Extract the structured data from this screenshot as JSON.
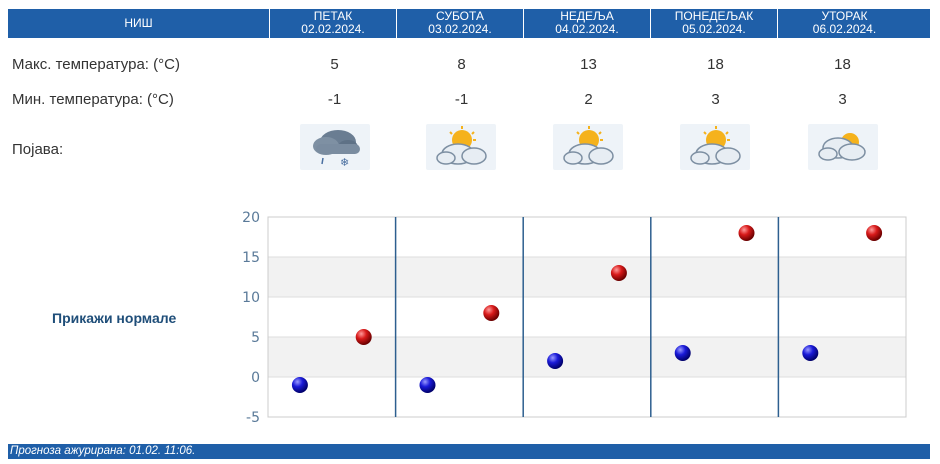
{
  "header": {
    "city": "НИШ",
    "days": [
      {
        "name": "ПЕТАК",
        "date": "02.02.2024."
      },
      {
        "name": "СУБОТА",
        "date": "03.02.2024."
      },
      {
        "name": "НЕДЕЉА",
        "date": "04.02.2024."
      },
      {
        "name": "ПОНЕДЕЉАК",
        "date": "05.02.2024."
      },
      {
        "name": "УТОРАК",
        "date": "06.02.2024."
      }
    ]
  },
  "rows": {
    "max_label": "Макс. температура: (°C)",
    "min_label": "Мин. температура: (°C)",
    "phenomenon_label": "Појава:",
    "max_values": [
      "5",
      "8",
      "13",
      "18",
      "18"
    ],
    "min_values": [
      "-1",
      "-1",
      "2",
      "3",
      "3"
    ],
    "icons": [
      "cloud-snow-icon",
      "sun-behind-cloud-icon",
      "sun-behind-cloud-icon",
      "sun-behind-cloud-icon",
      "partly-cloudy-icon"
    ]
  },
  "normals_label": "Прикажи нормале",
  "footer": "Прогноза ажурирана:  01.02. 11:06.",
  "chart_data": {
    "type": "scatter",
    "categories": [
      "ПЕТАК",
      "СУБОТА",
      "НЕДЕЉА",
      "ПОНЕДЕЉАК",
      "УТОРАК"
    ],
    "ylim": [
      -5,
      20
    ],
    "yticks": [
      20,
      15,
      10,
      5,
      0,
      -5
    ],
    "series": [
      {
        "values": [
          -1,
          -1,
          2,
          3,
          3
        ],
        "color": "#1010c8"
      },
      {
        "values": [
          5,
          8,
          13,
          18,
          18
        ],
        "color": "#c81010"
      }
    ],
    "grid": true
  }
}
